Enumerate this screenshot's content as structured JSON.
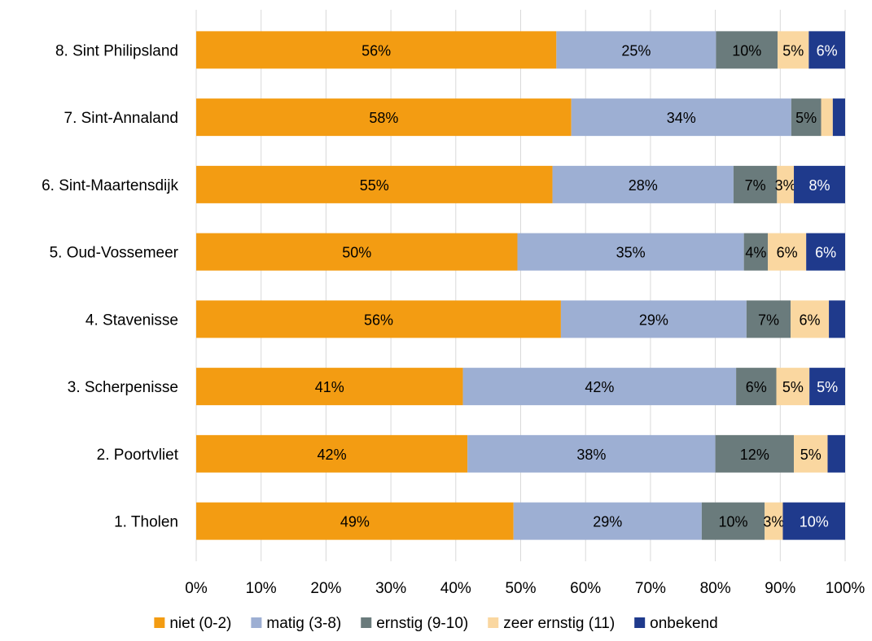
{
  "chart_data": {
    "type": "bar",
    "orientation": "horizontal",
    "stacking": "percent",
    "title": "",
    "xlabel": "",
    "ylabel": "",
    "xlim": [
      0,
      100
    ],
    "x_ticks": [
      "0%",
      "10%",
      "20%",
      "30%",
      "40%",
      "50%",
      "60%",
      "70%",
      "80%",
      "90%",
      "100%"
    ],
    "grid": "vertical",
    "legend_position": "bottom",
    "categories": [
      "8. Sint Philipsland",
      "7. Sint-Annaland",
      "6. Sint-Maartensdijk",
      "5. Oud-Vossemeer",
      "4. Stavenisse",
      "3. Scherpenisse",
      "2. Poortvliet",
      "1. Tholen"
    ],
    "series": [
      {
        "name": "niet (0-2)",
        "color": "#F39C12",
        "label_color": "#000000",
        "values": [
          55.5,
          57.8,
          54.9,
          49.5,
          56.2,
          41.1,
          41.8,
          48.9
        ],
        "labels": [
          "56%",
          "58%",
          "55%",
          "50%",
          "56%",
          "41%",
          "42%",
          "49%"
        ]
      },
      {
        "name": "matig (3-8)",
        "color": "#9DAFD3",
        "label_color": "#000000",
        "values": [
          24.6,
          33.9,
          27.9,
          34.9,
          28.6,
          42.1,
          38.2,
          29.0
        ],
        "labels": [
          "25%",
          "34%",
          "28%",
          "35%",
          "29%",
          "42%",
          "38%",
          "29%"
        ]
      },
      {
        "name": "ernstig (9-10)",
        "color": "#6A7B7C",
        "label_color": "#000000",
        "values": [
          9.5,
          4.6,
          6.7,
          3.7,
          6.8,
          6.2,
          12.1,
          9.7
        ],
        "labels": [
          "10%",
          "5%",
          "7%",
          "4%",
          "7%",
          "6%",
          "12%",
          "10%"
        ]
      },
      {
        "name": "zeer ernstig (11)",
        "color": "#FAD7A0",
        "label_color": "#000000",
        "values": [
          4.8,
          1.8,
          2.6,
          5.9,
          5.9,
          5.1,
          5.2,
          2.8
        ],
        "labels": [
          "5%",
          "",
          "3%",
          "6%",
          "6%",
          "5%",
          "5%",
          "3%"
        ]
      },
      {
        "name": "onbekend",
        "color": "#1F3A8C",
        "label_color": "#ffffff",
        "values": [
          5.6,
          1.9,
          7.9,
          6.0,
          2.5,
          5.5,
          2.7,
          9.6
        ],
        "labels": [
          "6%",
          "",
          "8%",
          "6%",
          "",
          "5%",
          "",
          "10%"
        ]
      }
    ]
  }
}
